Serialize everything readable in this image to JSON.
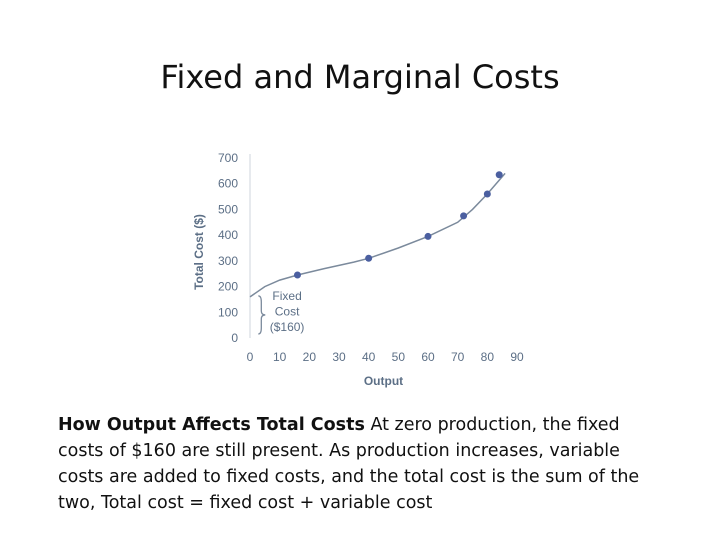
{
  "slide": {
    "title": "Fixed and Marginal Costs"
  },
  "caption": {
    "bold": "How Output Affects Total Costs",
    "text": "At zero production, the fixed costs of $160 are still present. As production increases, variable costs are added to fixed costs, and the total cost is the sum of the two, Total cost = fixed cost + variable cost"
  },
  "chart_data": {
    "type": "line",
    "xlabel": "Output",
    "ylabel": "Total Cost ($)",
    "xlim": [
      0,
      90
    ],
    "ylim": [
      0,
      700
    ],
    "xticks": [
      0,
      10,
      20,
      30,
      40,
      50,
      60,
      70,
      80,
      90
    ],
    "yticks": [
      0,
      100,
      200,
      300,
      400,
      500,
      600,
      700
    ],
    "curve": {
      "x": [
        0,
        5,
        10,
        16,
        25,
        35,
        40,
        50,
        60,
        70,
        75,
        80,
        86
      ],
      "y": [
        160,
        200,
        225,
        245,
        270,
        295,
        310,
        350,
        395,
        450,
        500,
        560,
        640
      ]
    },
    "series": [
      {
        "x": [
          16,
          40,
          60,
          72,
          80,
          84
        ],
        "y": [
          245,
          310,
          395,
          475,
          560,
          635
        ]
      }
    ],
    "annotation": {
      "lines": [
        "Fixed",
        "Cost",
        "($160)"
      ],
      "y_range": [
        0,
        160
      ]
    },
    "colors": {
      "curve": "#7b8a9c",
      "point": "#4b5fa0",
      "axis_text": "#5c6f86"
    }
  }
}
